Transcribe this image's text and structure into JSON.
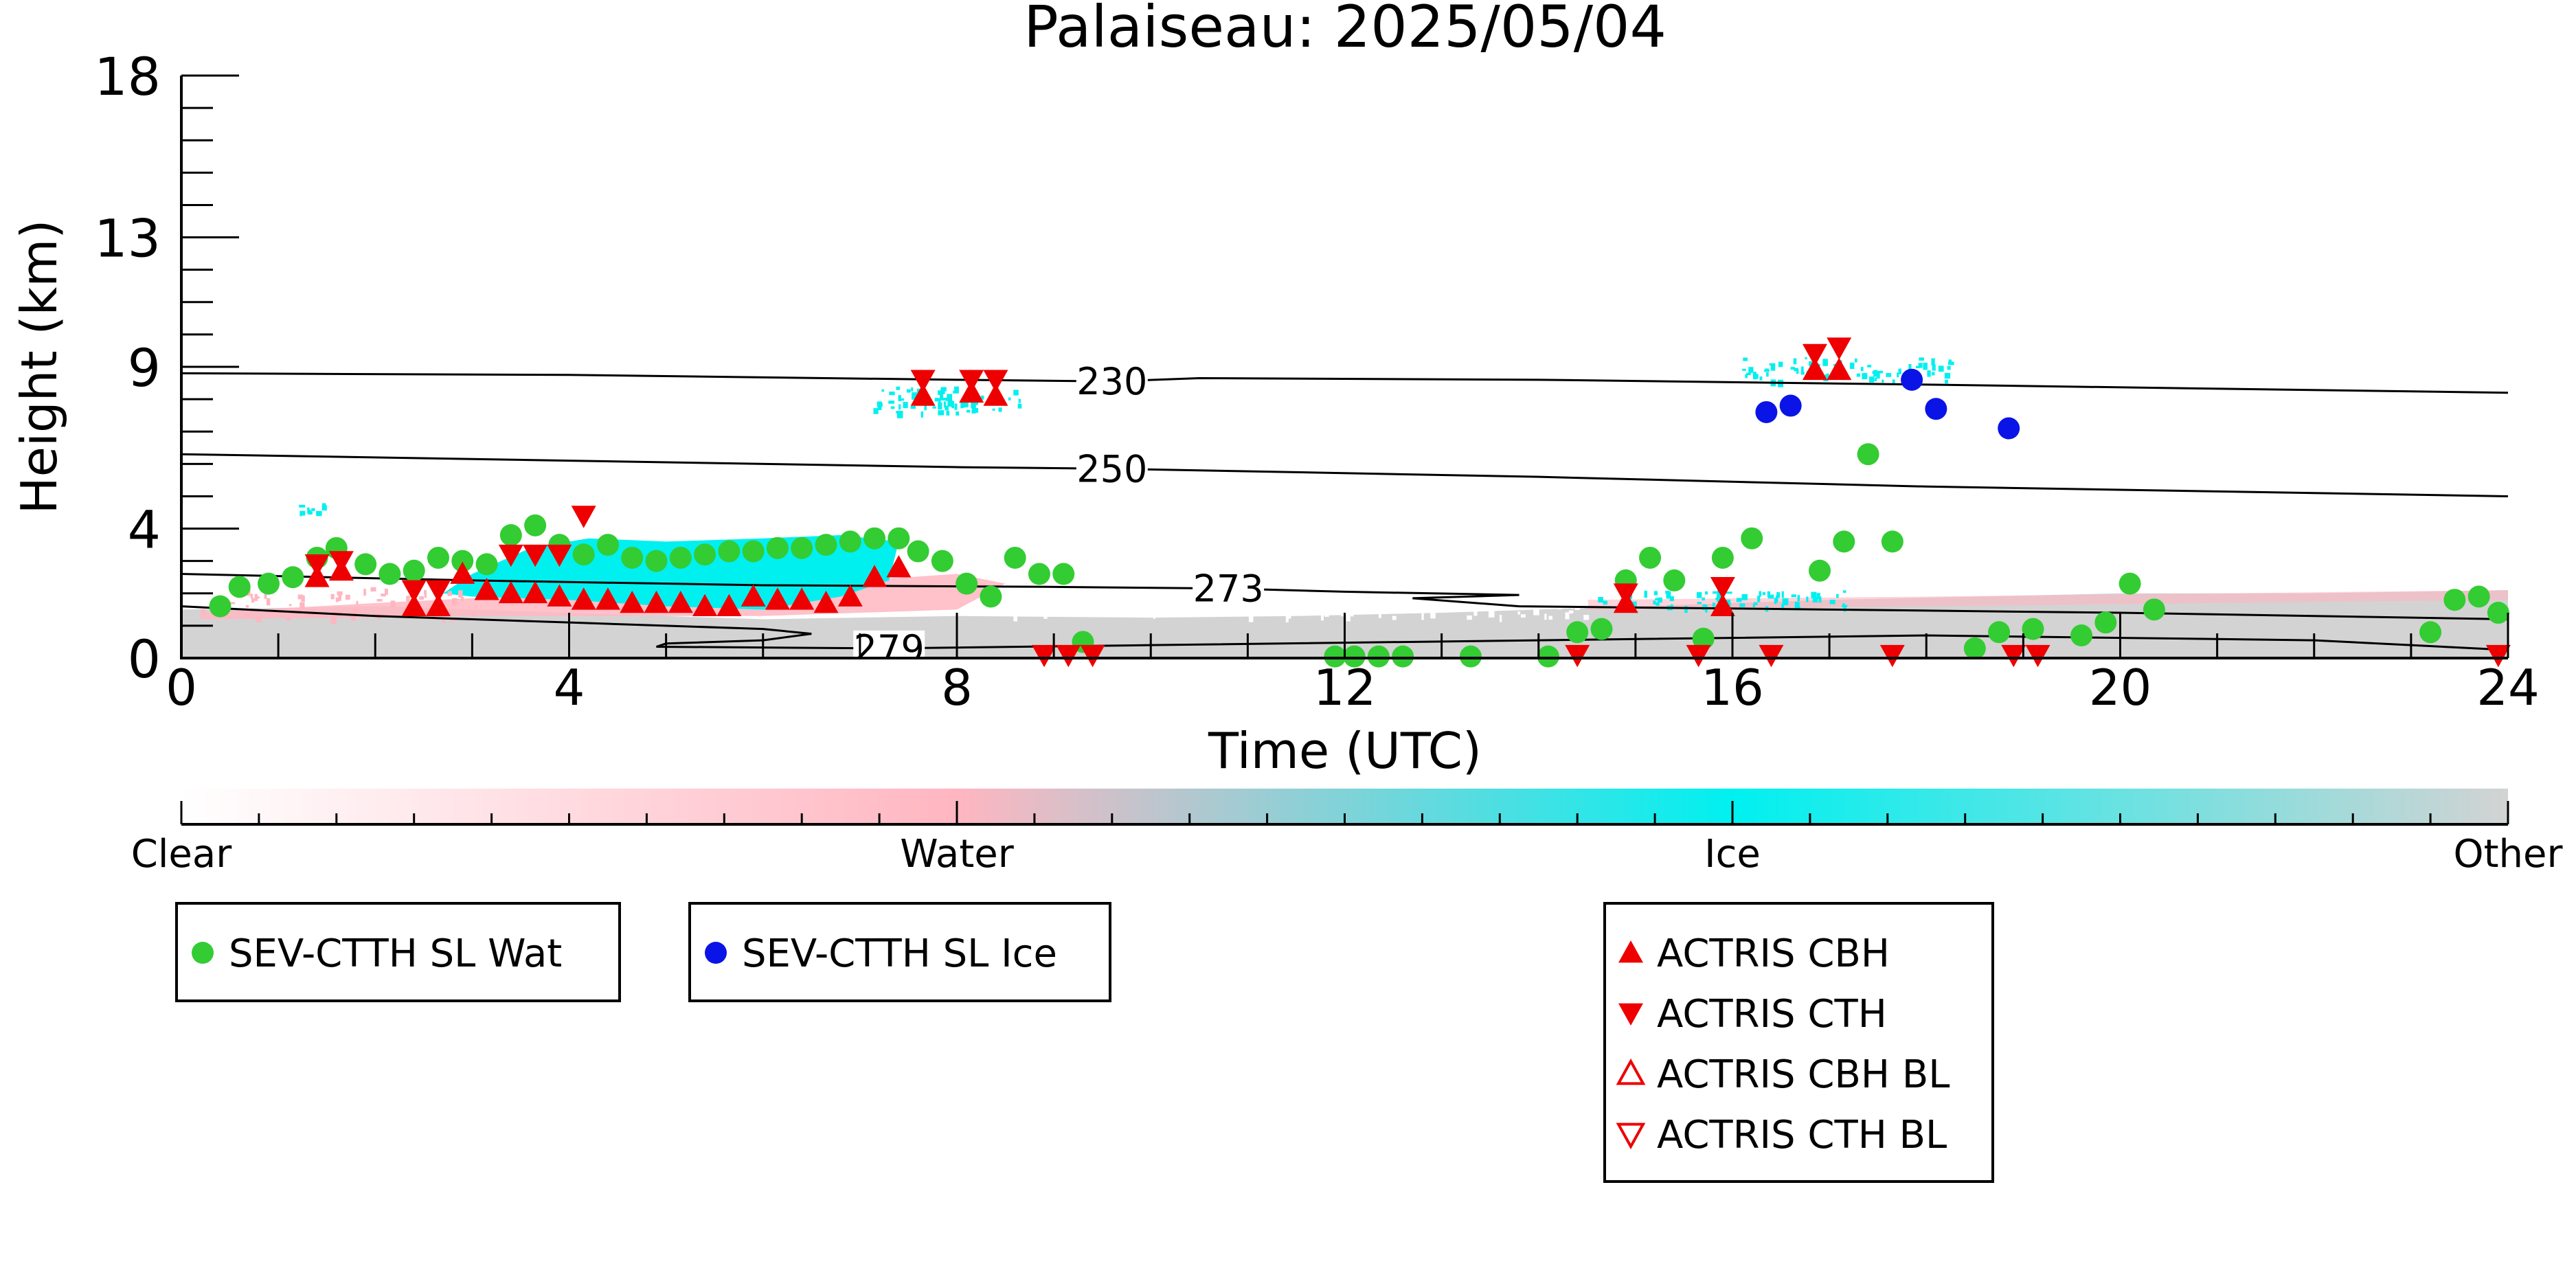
{
  "chart_data": {
    "type": "scatter",
    "title": "Palaiseau: 2025/05/04",
    "xlabel": "Time (UTC)",
    "ylabel": "Height (km)",
    "xlim": [
      0,
      24
    ],
    "ylim": [
      0,
      18
    ],
    "x_ticks": [
      0,
      4,
      8,
      12,
      16,
      20,
      24
    ],
    "y_ticks": [
      0,
      4,
      9,
      13,
      18
    ],
    "grid": false,
    "colors": {
      "wat": "#33cc33",
      "ice": "#0a14e6",
      "actris": "#ee0000",
      "ice_mask": "#00f0f0",
      "water_mask": "#ffb6c1",
      "other_mask": "#d3d3d3",
      "contour": "#000000"
    },
    "colorbar": {
      "labels": [
        "Clear",
        "Water",
        "Ice",
        "Other"
      ],
      "stops": [
        "#ffffff",
        "#ffb6c1",
        "#00f0f0",
        "#d3d3d3"
      ]
    },
    "contours": [
      {
        "label": "230",
        "label_x": 9.6,
        "points": [
          [
            0,
            8.8
          ],
          [
            4,
            8.75
          ],
          [
            8,
            8.6
          ],
          [
            9.6,
            8.55
          ],
          [
            10.5,
            8.65
          ],
          [
            14,
            8.6
          ],
          [
            18,
            8.45
          ],
          [
            24,
            8.2
          ]
        ]
      },
      {
        "label": "250",
        "label_x": 9.6,
        "points": [
          [
            0,
            6.3
          ],
          [
            4,
            6.1
          ],
          [
            8,
            5.9
          ],
          [
            9.6,
            5.85
          ],
          [
            10.5,
            5.8
          ],
          [
            14,
            5.6
          ],
          [
            18,
            5.3
          ],
          [
            24,
            5.0
          ]
        ]
      },
      {
        "label": "273",
        "label_x": 10.8,
        "points": [
          [
            0,
            2.6
          ],
          [
            3,
            2.4
          ],
          [
            6,
            2.25
          ],
          [
            9,
            2.2
          ],
          [
            10.8,
            2.15
          ],
          [
            12,
            2.05
          ],
          [
            13.8,
            1.95
          ],
          [
            12.7,
            1.85
          ],
          [
            13.8,
            1.6
          ],
          [
            17,
            1.5
          ],
          [
            20,
            1.4
          ],
          [
            24,
            1.2
          ]
        ]
      },
      {
        "label": "279",
        "label_x": 7.3,
        "points": [
          [
            0,
            1.6
          ],
          [
            2,
            1.3
          ],
          [
            4,
            1.1
          ],
          [
            6,
            0.9
          ],
          [
            6.5,
            0.75
          ],
          [
            6,
            0.55
          ],
          [
            5,
            0.45
          ],
          [
            4.9,
            0.35
          ],
          [
            7.3,
            0.3
          ],
          [
            10,
            0.4
          ],
          [
            14,
            0.55
          ],
          [
            18,
            0.7
          ],
          [
            22,
            0.55
          ],
          [
            24,
            0.25
          ]
        ]
      }
    ],
    "series": [
      {
        "name": "SEV-CTTH SL Wat",
        "marker": "circle",
        "color": "#33cc33",
        "points": [
          [
            0.4,
            1.6
          ],
          [
            0.6,
            2.2
          ],
          [
            0.9,
            2.3
          ],
          [
            1.15,
            2.5
          ],
          [
            1.4,
            3.1
          ],
          [
            1.6,
            3.4
          ],
          [
            1.9,
            2.9
          ],
          [
            2.15,
            2.6
          ],
          [
            2.4,
            2.7
          ],
          [
            2.65,
            3.1
          ],
          [
            2.9,
            3.0
          ],
          [
            3.15,
            2.9
          ],
          [
            3.4,
            3.8
          ],
          [
            3.65,
            4.1
          ],
          [
            3.9,
            3.5
          ],
          [
            4.15,
            3.2
          ],
          [
            4.4,
            3.5
          ],
          [
            4.65,
            3.1
          ],
          [
            4.9,
            3.0
          ],
          [
            5.15,
            3.1
          ],
          [
            5.4,
            3.2
          ],
          [
            5.65,
            3.3
          ],
          [
            5.9,
            3.3
          ],
          [
            6.15,
            3.4
          ],
          [
            6.4,
            3.4
          ],
          [
            6.65,
            3.5
          ],
          [
            6.9,
            3.6
          ],
          [
            7.15,
            3.7
          ],
          [
            7.4,
            3.7
          ],
          [
            7.6,
            3.3
          ],
          [
            7.85,
            3.0
          ],
          [
            8.1,
            2.3
          ],
          [
            8.35,
            1.9
          ],
          [
            8.6,
            3.1
          ],
          [
            8.85,
            2.6
          ],
          [
            9.1,
            2.6
          ],
          [
            9.3,
            0.5
          ],
          [
            11.9,
            0.05
          ],
          [
            12.1,
            0.05
          ],
          [
            12.35,
            0.05
          ],
          [
            12.6,
            0.05
          ],
          [
            13.3,
            0.05
          ],
          [
            14.1,
            0.05
          ],
          [
            14.4,
            0.8
          ],
          [
            14.65,
            0.9
          ],
          [
            14.9,
            2.4
          ],
          [
            15.15,
            3.1
          ],
          [
            15.4,
            2.4
          ],
          [
            15.7,
            0.6
          ],
          [
            15.9,
            3.1
          ],
          [
            16.2,
            3.7
          ],
          [
            16.9,
            2.7
          ],
          [
            17.15,
            3.6
          ],
          [
            17.4,
            6.3
          ],
          [
            17.65,
            3.6
          ],
          [
            18.5,
            0.3
          ],
          [
            18.75,
            0.8
          ],
          [
            19.1,
            0.9
          ],
          [
            19.6,
            0.7
          ],
          [
            19.85,
            1.1
          ],
          [
            20.1,
            2.3
          ],
          [
            20.35,
            1.5
          ],
          [
            23.2,
            0.8
          ],
          [
            23.45,
            1.8
          ],
          [
            23.7,
            1.9
          ],
          [
            23.9,
            1.4
          ]
        ]
      },
      {
        "name": "SEV-CTTH SL Ice",
        "marker": "circle",
        "color": "#0a14e6",
        "points": [
          [
            16.35,
            7.6
          ],
          [
            16.6,
            7.8
          ],
          [
            17.85,
            8.6
          ],
          [
            18.1,
            7.7
          ],
          [
            18.85,
            7.1
          ]
        ]
      },
      {
        "name": "ACTRIS CBH",
        "marker": "triangle-up",
        "color": "#ee0000",
        "points": [
          [
            1.4,
            2.5
          ],
          [
            1.65,
            2.7
          ],
          [
            2.4,
            1.6
          ],
          [
            2.65,
            1.6
          ],
          [
            2.9,
            2.6
          ],
          [
            3.15,
            2.1
          ],
          [
            3.4,
            2.0
          ],
          [
            3.65,
            2.0
          ],
          [
            3.9,
            1.9
          ],
          [
            4.15,
            1.8
          ],
          [
            4.4,
            1.8
          ],
          [
            4.65,
            1.7
          ],
          [
            4.9,
            1.7
          ],
          [
            5.15,
            1.7
          ],
          [
            5.4,
            1.6
          ],
          [
            5.65,
            1.6
          ],
          [
            5.9,
            1.9
          ],
          [
            6.15,
            1.8
          ],
          [
            6.4,
            1.8
          ],
          [
            6.65,
            1.7
          ],
          [
            6.9,
            1.9
          ],
          [
            7.15,
            2.5
          ],
          [
            7.4,
            2.8
          ],
          [
            7.65,
            8.1
          ],
          [
            8.15,
            8.2
          ],
          [
            8.4,
            8.1
          ],
          [
            14.9,
            1.7
          ],
          [
            15.9,
            1.6
          ],
          [
            16.85,
            8.9
          ],
          [
            17.1,
            8.9
          ]
        ]
      },
      {
        "name": "ACTRIS CTH",
        "marker": "triangle-down",
        "color": "#ee0000",
        "points": [
          [
            1.4,
            2.9
          ],
          [
            1.65,
            3.0
          ],
          [
            2.4,
            2.1
          ],
          [
            2.65,
            2.1
          ],
          [
            3.4,
            3.2
          ],
          [
            3.65,
            3.2
          ],
          [
            3.9,
            3.2
          ],
          [
            4.15,
            4.4
          ],
          [
            7.65,
            8.6
          ],
          [
            8.15,
            8.6
          ],
          [
            8.4,
            8.6
          ],
          [
            8.9,
            0.1
          ],
          [
            9.15,
            0.1
          ],
          [
            9.4,
            0.1
          ],
          [
            14.4,
            0.1
          ],
          [
            14.9,
            2.0
          ],
          [
            15.65,
            0.1
          ],
          [
            15.9,
            2.2
          ],
          [
            16.4,
            0.1
          ],
          [
            16.85,
            9.4
          ],
          [
            17.1,
            9.6
          ],
          [
            17.65,
            0.1
          ],
          [
            18.9,
            0.1
          ],
          [
            19.15,
            0.1
          ],
          [
            23.9,
            0.1
          ]
        ]
      }
    ],
    "legends": [
      {
        "entries": [
          {
            "label": "SEV-CTTH SL Wat",
            "marker": "circle",
            "color": "#33cc33"
          }
        ]
      },
      {
        "entries": [
          {
            "label": "SEV-CTTH SL Ice",
            "marker": "circle",
            "color": "#0a14e6"
          }
        ]
      },
      {
        "entries": [
          {
            "label": "ACTRIS CBH",
            "marker": "triangle-up",
            "color": "#ee0000"
          },
          {
            "label": "ACTRIS CTH",
            "marker": "triangle-down",
            "color": "#ee0000"
          },
          {
            "label": "ACTRIS CBH BL",
            "marker": "triangle-up-open",
            "color": "#ee0000"
          },
          {
            "label": "ACTRIS CTH BL",
            "marker": "triangle-down-open",
            "color": "#ee0000"
          }
        ]
      }
    ]
  }
}
